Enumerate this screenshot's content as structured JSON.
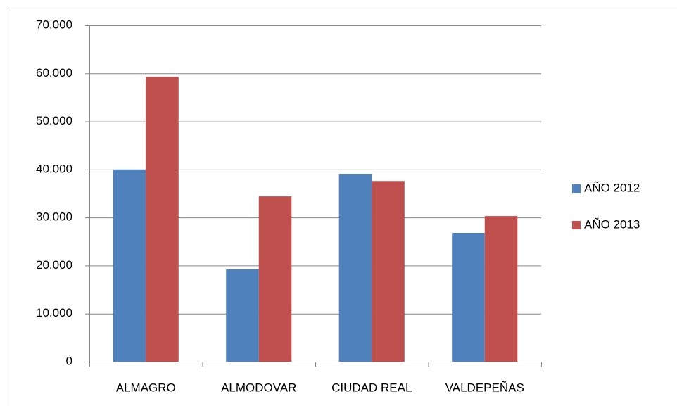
{
  "chart_data": {
    "type": "bar",
    "categories": [
      "ALMAGRO",
      "ALMODOVAR",
      "CIUDAD REAL",
      "VALDEPEÑAS"
    ],
    "series": [
      {
        "name": "AÑO 2012",
        "color": "#4f81bd",
        "values": [
          40000,
          19200,
          39100,
          26800
        ]
      },
      {
        "name": "AÑO 2013",
        "color": "#c0504d",
        "values": [
          59300,
          34400,
          37600,
          30300
        ]
      }
    ],
    "ylim": [
      0,
      70000
    ],
    "yticks": [
      0,
      {
        "value": 10000,
        "label": "10.000"
      },
      {
        "value": 20000,
        "label": "20.000"
      },
      {
        "value": 30000,
        "label": "30.000"
      },
      {
        "value": 40000,
        "label": "40.000"
      },
      {
        "value": 50000,
        "label": "50.000"
      },
      {
        "value": 60000,
        "label": "60.000"
      },
      {
        "value": 70000,
        "label": "70.000"
      }
    ],
    "grid": true,
    "legend": "right"
  }
}
